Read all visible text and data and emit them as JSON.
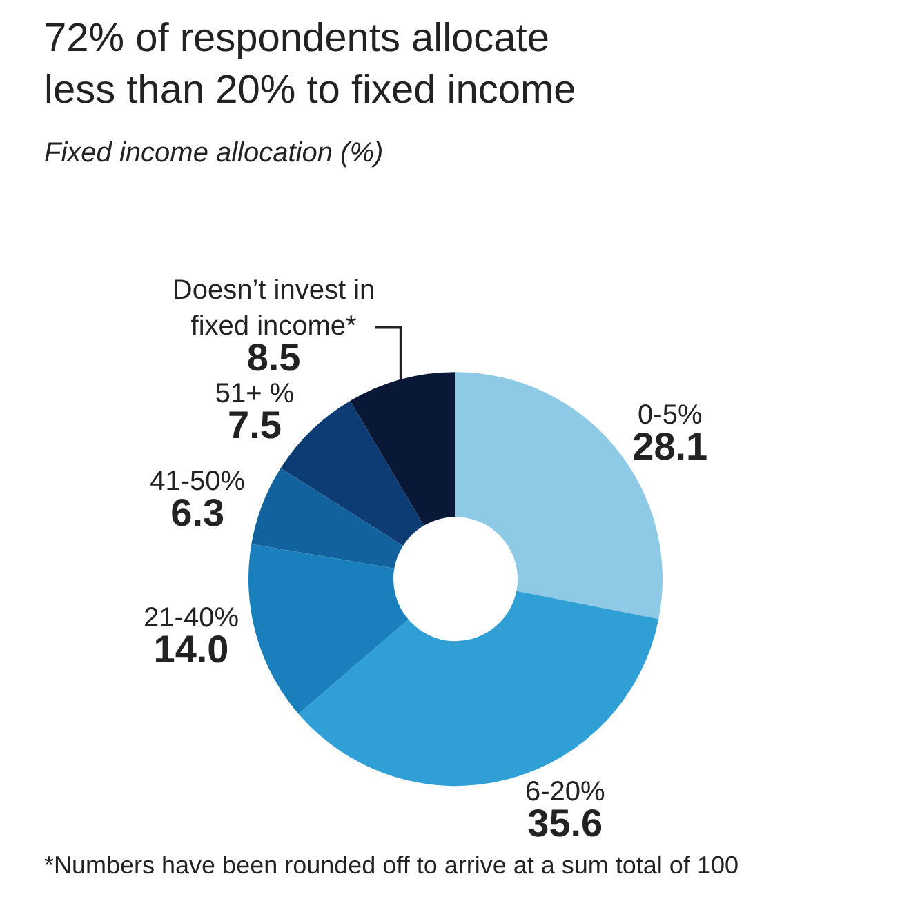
{
  "chart_data": {
    "type": "donut",
    "title": "72% of respondents allocate less than 20% to fixed income",
    "subtitle": "Fixed income allocation (%)",
    "categories": [
      "0-5%",
      "6-20%",
      "21-40%",
      "41-50%",
      "51+ %",
      "Doesn’t invest in fixed income*"
    ],
    "values": [
      28.1,
      35.6,
      14.0,
      6.3,
      7.5,
      8.5
    ],
    "value_labels": [
      "28.1",
      "35.6",
      "14.0",
      "6.3",
      "7.5",
      "8.5"
    ],
    "colors": [
      "#8ecae6",
      "#2f9fd6",
      "#1a80bd",
      "#12639d",
      "#0d3c74",
      "#0a1838"
    ],
    "legend": false,
    "annotations": [
      "*Numbers have been rounded off to arrive at a sum total of 100"
    ]
  }
}
